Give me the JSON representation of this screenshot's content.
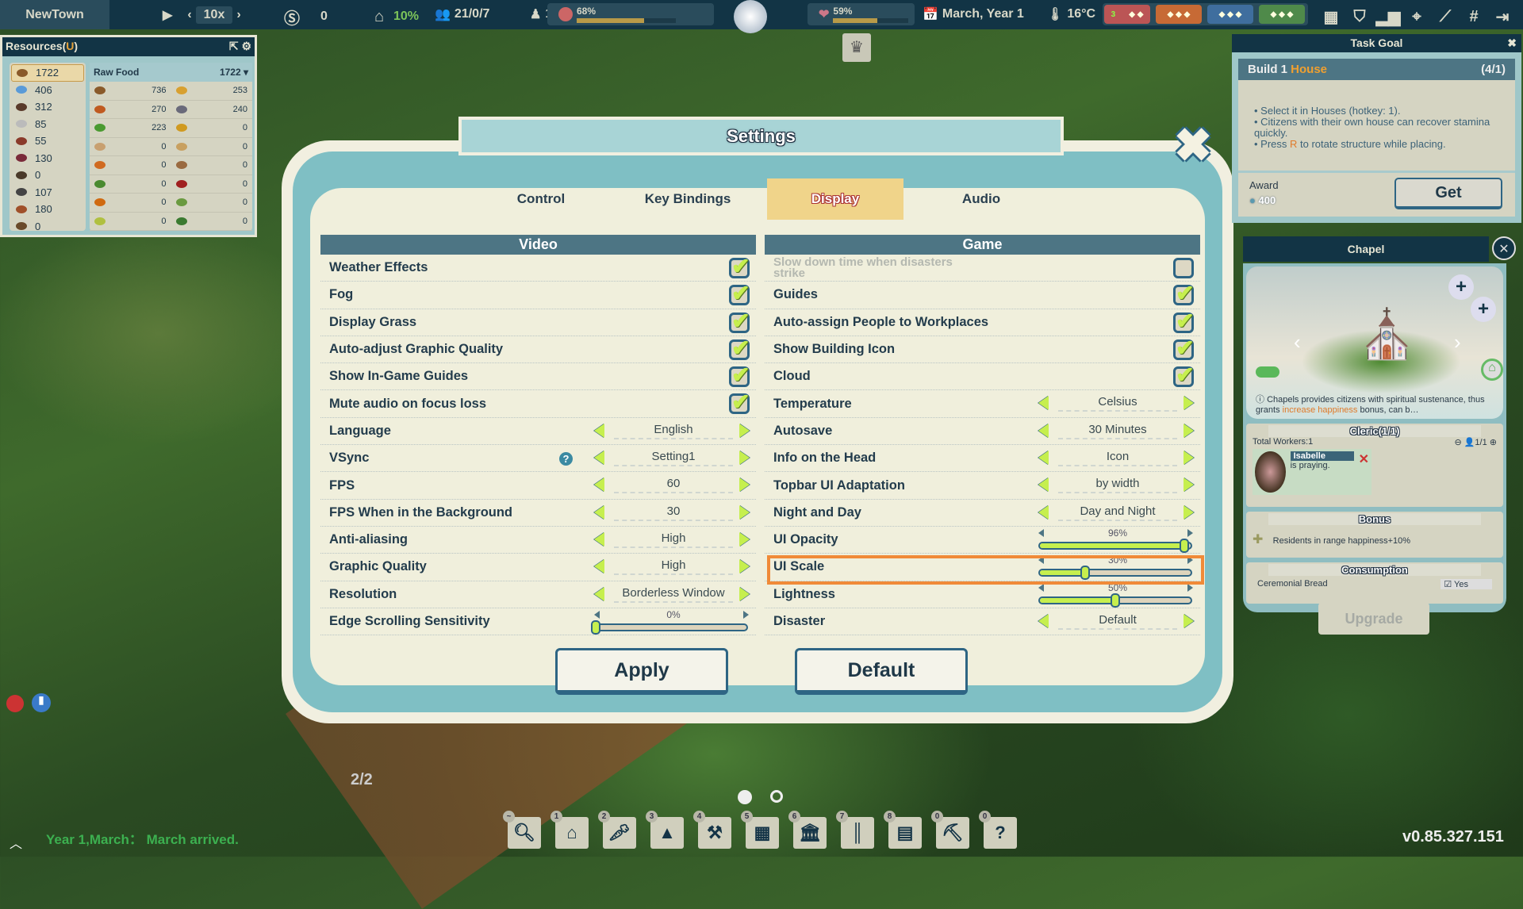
{
  "topbar": {
    "town_name": "NewTown",
    "speed": "10x",
    "money": "0",
    "housing_rate": "10%",
    "population": "21/0/7",
    "workers": "11",
    "happiness": "68%",
    "happiness_level": 0.68,
    "health": "59%",
    "health_level": 0.59,
    "date": "March, Year 1",
    "temperature": "16°C",
    "season_count": "3",
    "right_icons": [
      "build-menu-icon",
      "policy-badge-icon",
      "statistics-icon",
      "map-marker-icon",
      "tree-toggle-icon",
      "grid-icon",
      "exit-icon"
    ]
  },
  "resources": {
    "title": "Resources(",
    "hotkey": "U",
    "title_end": ")",
    "totals": [
      "1722",
      "406",
      "312",
      "85",
      "55",
      "130",
      "0",
      "107",
      "180",
      "0"
    ],
    "category": "Raw Food",
    "category_total": "1722",
    "items": [
      "736",
      "253",
      "270",
      "240",
      "223",
      "0",
      "0",
      "0",
      "0",
      "0",
      "0",
      "0",
      "0",
      "0",
      "0",
      "0"
    ]
  },
  "settings": {
    "title": "Settings",
    "tabs": [
      "Control",
      "Key Bindings",
      "Display",
      "Audio"
    ],
    "active_tab": "Display",
    "video_header": "Video",
    "game_header": "Game",
    "video": [
      {
        "label": "Weather Effects",
        "type": "check",
        "checked": true
      },
      {
        "label": "Fog",
        "type": "check",
        "checked": true
      },
      {
        "label": "Display Grass",
        "type": "check",
        "checked": true
      },
      {
        "label": "Auto-adjust Graphic Quality",
        "type": "check",
        "checked": true
      },
      {
        "label": "Show In-Game Guides",
        "type": "check",
        "checked": true
      },
      {
        "label": "Mute audio on focus loss",
        "type": "check",
        "checked": true
      },
      {
        "label": "Language",
        "type": "select",
        "value": "English"
      },
      {
        "label": "VSync",
        "type": "select",
        "value": "Setting1",
        "help": true
      },
      {
        "label": "FPS",
        "type": "select",
        "value": "60"
      },
      {
        "label": "FPS When in the Background",
        "type": "select",
        "value": "30"
      },
      {
        "label": "Anti-aliasing",
        "type": "select",
        "value": "High"
      },
      {
        "label": "Graphic Quality",
        "type": "select",
        "value": "High"
      },
      {
        "label": "Resolution",
        "type": "select",
        "value": "Borderless Window"
      },
      {
        "label": "Edge Scrolling Sensitivity",
        "type": "slider",
        "value": 0,
        "value_text": "0%"
      }
    ],
    "game": [
      {
        "label": "Slow down time when disasters strike",
        "type": "check",
        "checked": false,
        "disabled": true
      },
      {
        "label": "Guides",
        "type": "check",
        "checked": true
      },
      {
        "label": "Auto-assign People to Workplaces",
        "type": "check",
        "checked": true
      },
      {
        "label": "Show Building Icon",
        "type": "check",
        "checked": true
      },
      {
        "label": "Cloud",
        "type": "check",
        "checked": true
      },
      {
        "label": "Temperature",
        "type": "select",
        "value": "Celsius"
      },
      {
        "label": "Autosave",
        "type": "select",
        "value": "30 Minutes"
      },
      {
        "label": "Info on the Head",
        "type": "select",
        "value": "Icon"
      },
      {
        "label": "Topbar UI Adaptation",
        "type": "select",
        "value": "by width"
      },
      {
        "label": "Night and Day",
        "type": "select",
        "value": "Day and Night"
      },
      {
        "label": "UI Opacity",
        "type": "slider",
        "value": 96,
        "value_text": "96%"
      },
      {
        "label": "UI Scale",
        "type": "slider",
        "value": 30,
        "value_text": "30%",
        "highlighted": true
      },
      {
        "label": "Lightness",
        "type": "slider",
        "value": 50,
        "value_text": "50%"
      },
      {
        "label": "Disaster",
        "type": "select",
        "value": "Default"
      }
    ],
    "apply": "Apply",
    "default": "Default",
    "highlight_color": "#f08a38",
    "accent": "#c6ef4e"
  },
  "task": {
    "title": "Task Goal",
    "goal_prefix": "Build 1 ",
    "goal_target": "House",
    "progress": "(4/1)",
    "b1": "• Select it in Houses (hotkey: 1).",
    "b2": "• Citizens with their own house can recover stamina quickly.",
    "b3a": "• Press ",
    "b3key": "R",
    "b3b": " to rotate structure while placing.",
    "award_label": "Award",
    "award_amount": "400",
    "get": "Get"
  },
  "chapel": {
    "title": "Chapel",
    "desc_a": "Chapels provides citizens with spiritual sustenance, thus grants ",
    "desc_hl": "increase happiness",
    "desc_b": " bonus, can b…",
    "workers_header": "Cleric(1/1)",
    "total_workers": "Total Workers:1",
    "slots": "1/1",
    "worker_name": "Isabelle",
    "worker_status": "is praying.",
    "bonus_header": "Bonus",
    "bonus_text": "Residents in range happiness+10%",
    "consumption_header": "Consumption",
    "consumption_item": "Ceremonial Bread",
    "consumption_value": "Yes",
    "upgrade": "Upgrade"
  },
  "bottom": {
    "hotkeys": [
      "~",
      "1",
      "2",
      "3",
      "4",
      "5",
      "6",
      "7",
      "8",
      "0",
      "0"
    ],
    "tools": [
      "search",
      "house",
      "food",
      "tree",
      "hammer",
      "window",
      "bank",
      "road",
      "decor",
      "pickaxe",
      "help"
    ],
    "message": "Year 1,March：  March arrived.",
    "page": "2/2",
    "version": "v0.85.327.151"
  }
}
